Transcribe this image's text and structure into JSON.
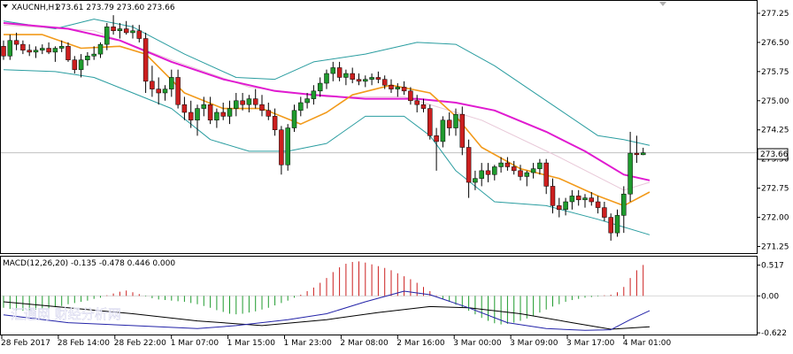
{
  "window": {
    "symbol_label": "XAUCNH,H1",
    "ohlc_text": "273.61 273.79 273.60 273.66",
    "last_price_tag": "273.66",
    "macd_label": "MACD(12,26,20) -0.135 -0.478 0.446 0.000",
    "watermark": "汇通网 财经分析网"
  },
  "colors": {
    "bull": "#1f9b2e",
    "bear": "#cc1f1f",
    "bollinger": "#2a9da0",
    "ma_slow": "#e01ad0",
    "ma_fast": "#f29a1a",
    "ma_thin": "#e8c8d8",
    "macd_line": "#2323a8",
    "signal_line": "#000000",
    "hist_pos": "#cc1f1f",
    "hist_neg": "#1f9b2e",
    "grid": "#d0d0d0",
    "last_price_bg": "#ffffff"
  },
  "chart_data": [
    {
      "type": "candlestick",
      "title": "XAUCNH,H1",
      "ylim": [
        271.125,
        277.5
      ],
      "price_ticks": [
        "277.25",
        "276.50",
        "275.75",
        "275.00",
        "274.25",
        "273.50",
        "272.75",
        "272.00",
        "271.25"
      ],
      "time_labels": [
        "28 Feb 2017",
        "28 Feb 14:00",
        "28 Feb 22:00",
        "1 Mar 07:00",
        "1 Mar 15:00",
        "1 Mar 23:00",
        "2 Mar 08:00",
        "2 Mar 16:00",
        "3 Mar 00:00",
        "3 Mar 09:00",
        "3 Mar 17:00",
        "4 Mar 01:00"
      ],
      "candles": [
        [
          276.4,
          276.55,
          276.05,
          276.15
        ],
        [
          276.15,
          276.7,
          276.05,
          276.55
        ],
        [
          276.55,
          276.75,
          276.3,
          276.45
        ],
        [
          276.45,
          276.55,
          276.2,
          276.3
        ],
        [
          276.3,
          276.45,
          276.15,
          276.25
        ],
        [
          276.25,
          276.4,
          276.1,
          276.3
        ],
        [
          276.3,
          276.45,
          276.2,
          276.35
        ],
        [
          276.35,
          276.5,
          276.2,
          276.25
        ],
        [
          276.25,
          276.4,
          276.0,
          276.35
        ],
        [
          276.35,
          276.55,
          276.25,
          276.4
        ],
        [
          276.4,
          276.5,
          276.0,
          276.05
        ],
        [
          276.05,
          276.15,
          275.7,
          275.8
        ],
        [
          275.8,
          276.2,
          275.6,
          276.05
        ],
        [
          276.05,
          276.25,
          275.9,
          276.15
        ],
        [
          276.15,
          276.4,
          276.05,
          276.2
        ],
        [
          276.2,
          276.5,
          276.1,
          276.45
        ],
        [
          276.45,
          277.0,
          276.3,
          276.9
        ],
        [
          276.9,
          277.2,
          276.7,
          276.8
        ],
        [
          276.8,
          277.0,
          276.6,
          276.85
        ],
        [
          276.85,
          277.05,
          276.7,
          276.75
        ],
        [
          276.75,
          276.95,
          276.6,
          276.8
        ],
        [
          276.8,
          276.95,
          276.5,
          276.6
        ],
        [
          276.6,
          276.75,
          275.2,
          275.5
        ],
        [
          275.5,
          275.9,
          275.1,
          275.3
        ],
        [
          275.3,
          275.6,
          274.9,
          275.2
        ],
        [
          275.2,
          275.4,
          275.0,
          275.3
        ],
        [
          275.3,
          275.8,
          275.1,
          275.6
        ],
        [
          275.6,
          275.8,
          274.8,
          274.9
        ],
        [
          274.9,
          275.1,
          274.5,
          274.7
        ],
        [
          274.7,
          275.0,
          274.3,
          274.5
        ],
        [
          274.5,
          274.9,
          274.1,
          274.8
        ],
        [
          274.8,
          275.1,
          274.6,
          274.9
        ],
        [
          274.9,
          275.1,
          274.4,
          274.5
        ],
        [
          274.5,
          274.8,
          274.3,
          274.7
        ],
        [
          274.7,
          274.95,
          274.5,
          274.6
        ],
        [
          274.6,
          275.0,
          274.4,
          274.8
        ],
        [
          274.8,
          275.2,
          274.6,
          275.0
        ],
        [
          275.0,
          275.2,
          274.75,
          274.9
        ],
        [
          274.9,
          275.15,
          274.7,
          275.05
        ],
        [
          275.05,
          275.3,
          274.8,
          274.9
        ],
        [
          274.9,
          275.15,
          274.6,
          274.75
        ],
        [
          274.75,
          274.95,
          274.5,
          274.6
        ],
        [
          274.6,
          274.8,
          274.1,
          274.25
        ],
        [
          274.25,
          274.35,
          273.1,
          273.35
        ],
        [
          273.35,
          274.4,
          273.2,
          274.3
        ],
        [
          274.3,
          274.9,
          274.2,
          274.75
        ],
        [
          274.75,
          275.1,
          274.6,
          274.95
        ],
        [
          274.95,
          275.2,
          274.8,
          275.05
        ],
        [
          275.05,
          275.4,
          274.9,
          275.25
        ],
        [
          275.25,
          275.6,
          275.1,
          275.45
        ],
        [
          275.45,
          275.8,
          275.3,
          275.7
        ],
        [
          275.7,
          276.0,
          275.5,
          275.85
        ],
        [
          275.85,
          276.0,
          275.5,
          275.6
        ],
        [
          275.6,
          275.8,
          275.4,
          275.7
        ],
        [
          275.7,
          275.85,
          275.45,
          275.55
        ],
        [
          275.55,
          275.7,
          275.4,
          275.5
        ],
        [
          275.5,
          275.65,
          275.35,
          275.55
        ],
        [
          275.55,
          275.7,
          275.4,
          275.6
        ],
        [
          275.6,
          275.75,
          275.45,
          275.55
        ],
        [
          275.55,
          275.65,
          275.3,
          275.4
        ],
        [
          275.4,
          275.55,
          275.2,
          275.3
        ],
        [
          275.3,
          275.45,
          275.1,
          275.35
        ],
        [
          275.35,
          275.5,
          275.15,
          275.25
        ],
        [
          275.25,
          275.35,
          274.9,
          275.0
        ],
        [
          275.0,
          275.15,
          274.7,
          274.9
        ],
        [
          274.9,
          275.05,
          274.7,
          274.8
        ],
        [
          274.8,
          274.9,
          274.0,
          274.1
        ],
        [
          274.1,
          274.3,
          273.2,
          273.95
        ],
        [
          273.95,
          274.6,
          273.8,
          274.5
        ],
        [
          274.5,
          274.7,
          274.1,
          274.3
        ],
        [
          274.3,
          274.8,
          274.1,
          274.65
        ],
        [
          274.65,
          274.85,
          273.6,
          273.8
        ],
        [
          273.8,
          274.0,
          272.5,
          272.9
        ],
        [
          272.9,
          273.2,
          272.7,
          273.0
        ],
        [
          273.0,
          273.4,
          272.8,
          273.2
        ],
        [
          273.2,
          273.4,
          272.9,
          273.1
        ],
        [
          273.1,
          273.35,
          272.95,
          273.3
        ],
        [
          273.3,
          273.55,
          273.15,
          273.4
        ],
        [
          273.4,
          273.55,
          273.2,
          273.3
        ],
        [
          273.3,
          273.45,
          273.1,
          273.2
        ],
        [
          273.2,
          273.35,
          272.95,
          273.05
        ],
        [
          273.05,
          273.2,
          272.8,
          273.15
        ],
        [
          273.15,
          273.4,
          273.0,
          273.25
        ],
        [
          273.25,
          273.5,
          273.1,
          273.4
        ],
        [
          273.4,
          273.5,
          272.6,
          272.8
        ],
        [
          272.8,
          273.0,
          272.1,
          272.3
        ],
        [
          272.3,
          272.5,
          272.0,
          272.2
        ],
        [
          272.2,
          272.5,
          272.05,
          272.4
        ],
        [
          272.4,
          272.7,
          272.2,
          272.55
        ],
        [
          272.55,
          272.7,
          272.3,
          272.45
        ],
        [
          272.45,
          272.6,
          272.25,
          272.5
        ],
        [
          272.5,
          272.65,
          272.3,
          272.4
        ],
        [
          272.4,
          272.55,
          272.1,
          272.25
        ],
        [
          272.25,
          272.4,
          271.9,
          272.0
        ],
        [
          272.0,
          272.1,
          271.4,
          271.6
        ],
        [
          271.6,
          272.2,
          271.5,
          272.05
        ],
        [
          272.05,
          272.8,
          271.6,
          272.6
        ],
        [
          272.6,
          274.2,
          272.4,
          273.65
        ],
        [
          273.65,
          274.1,
          273.4,
          273.61
        ],
        [
          273.61,
          273.79,
          273.6,
          273.66
        ]
      ],
      "overlays": {
        "bollinger_upper": [
          [
            0,
            277.05
          ],
          [
            8,
            276.85
          ],
          [
            14,
            277.1
          ],
          [
            20,
            276.9
          ],
          [
            28,
            276.2
          ],
          [
            36,
            275.6
          ],
          [
            42,
            275.55
          ],
          [
            48,
            276.0
          ],
          [
            56,
            276.2
          ],
          [
            64,
            276.5
          ],
          [
            70,
            276.45
          ],
          [
            76,
            275.9
          ],
          [
            84,
            275.0
          ],
          [
            92,
            274.1
          ],
          [
            96,
            274.0
          ],
          [
            100,
            273.85
          ]
        ],
        "bollinger_lower": [
          [
            0,
            275.8
          ],
          [
            8,
            275.75
          ],
          [
            14,
            275.6
          ],
          [
            20,
            275.2
          ],
          [
            26,
            274.8
          ],
          [
            32,
            274.0
          ],
          [
            38,
            273.7
          ],
          [
            44,
            273.7
          ],
          [
            50,
            273.9
          ],
          [
            56,
            274.6
          ],
          [
            62,
            274.6
          ],
          [
            66,
            274.1
          ],
          [
            70,
            273.2
          ],
          [
            76,
            272.4
          ],
          [
            84,
            272.3
          ],
          [
            92,
            271.95
          ],
          [
            100,
            271.55
          ]
        ],
        "ma_slow": [
          [
            0,
            277.0
          ],
          [
            10,
            276.85
          ],
          [
            18,
            276.55
          ],
          [
            26,
            276.0
          ],
          [
            34,
            275.55
          ],
          [
            42,
            275.25
          ],
          [
            48,
            275.15
          ],
          [
            56,
            275.05
          ],
          [
            64,
            275.05
          ],
          [
            70,
            274.95
          ],
          [
            76,
            274.75
          ],
          [
            84,
            274.2
          ],
          [
            90,
            273.7
          ],
          [
            96,
            273.1
          ],
          [
            100,
            272.95
          ]
        ],
        "ma_fast": [
          [
            0,
            276.7
          ],
          [
            6,
            276.7
          ],
          [
            12,
            276.35
          ],
          [
            18,
            276.4
          ],
          [
            22,
            276.2
          ],
          [
            28,
            275.2
          ],
          [
            34,
            274.8
          ],
          [
            40,
            274.8
          ],
          [
            46,
            274.4
          ],
          [
            50,
            274.7
          ],
          [
            54,
            275.15
          ],
          [
            60,
            275.4
          ],
          [
            66,
            275.2
          ],
          [
            70,
            274.6
          ],
          [
            74,
            273.8
          ],
          [
            80,
            273.25
          ],
          [
            86,
            273.0
          ],
          [
            92,
            272.55
          ],
          [
            96,
            272.3
          ],
          [
            100,
            272.65
          ]
        ],
        "ma_thin": [
          [
            0,
            276.95
          ],
          [
            14,
            276.8
          ],
          [
            26,
            276.05
          ],
          [
            38,
            275.35
          ],
          [
            50,
            275.1
          ],
          [
            62,
            275.1
          ],
          [
            74,
            274.5
          ],
          [
            86,
            273.55
          ],
          [
            96,
            272.7
          ],
          [
            100,
            272.9
          ]
        ]
      }
    },
    {
      "type": "bar",
      "title": "MACD(12,26,20)",
      "ylim": [
        -0.62,
        0.6
      ],
      "ticks": [
        "0.517",
        "0.00",
        "-0.622"
      ],
      "histogram": [
        -0.2,
        -0.22,
        -0.24,
        -0.25,
        -0.24,
        -0.23,
        -0.22,
        -0.21,
        -0.19,
        -0.17,
        -0.14,
        -0.12,
        -0.1,
        -0.08,
        -0.05,
        -0.03,
        0.01,
        0.04,
        0.07,
        0.09,
        0.06,
        0.03,
        -0.01,
        -0.04,
        -0.06,
        -0.07,
        -0.08,
        -0.09,
        -0.1,
        -0.12,
        -0.14,
        -0.17,
        -0.2,
        -0.24,
        -0.27,
        -0.3,
        -0.31,
        -0.3,
        -0.28,
        -0.26,
        -0.23,
        -0.2,
        -0.16,
        -0.12,
        -0.08,
        -0.03,
        0.02,
        0.08,
        0.14,
        0.22,
        0.3,
        0.4,
        0.48,
        0.54,
        0.57,
        0.58,
        0.56,
        0.53,
        0.5,
        0.47,
        0.43,
        0.38,
        0.33,
        0.28,
        0.22,
        0.15,
        0.08,
        0.01,
        -0.05,
        -0.1,
        -0.15,
        -0.2,
        -0.25,
        -0.31,
        -0.37,
        -0.42,
        -0.46,
        -0.48,
        -0.47,
        -0.45,
        -0.42,
        -0.38,
        -0.33,
        -0.28,
        -0.23,
        -0.18,
        -0.14,
        -0.1,
        -0.07,
        -0.05,
        -0.03,
        -0.02,
        -0.01,
        0.01,
        0.02,
        0.06,
        0.15,
        0.3,
        0.43,
        0.52
      ],
      "macd_line": [
        [
          0,
          -0.32
        ],
        [
          10,
          -0.45
        ],
        [
          20,
          -0.5
        ],
        [
          30,
          -0.55
        ],
        [
          36,
          -0.5
        ],
        [
          44,
          -0.4
        ],
        [
          50,
          -0.3
        ],
        [
          56,
          -0.1
        ],
        [
          62,
          0.08
        ],
        [
          66,
          0.02
        ],
        [
          72,
          -0.2
        ],
        [
          78,
          -0.45
        ],
        [
          84,
          -0.55
        ],
        [
          90,
          -0.58
        ],
        [
          94,
          -0.57
        ],
        [
          97,
          -0.4
        ],
        [
          100,
          -0.25
        ]
      ],
      "signal_line": [
        [
          0,
          -0.1
        ],
        [
          10,
          -0.2
        ],
        [
          20,
          -0.3
        ],
        [
          30,
          -0.42
        ],
        [
          40,
          -0.5
        ],
        [
          50,
          -0.4
        ],
        [
          58,
          -0.28
        ],
        [
          66,
          -0.18
        ],
        [
          72,
          -0.2
        ],
        [
          80,
          -0.3
        ],
        [
          88,
          -0.45
        ],
        [
          94,
          -0.56
        ],
        [
          100,
          -0.52
        ]
      ]
    }
  ]
}
